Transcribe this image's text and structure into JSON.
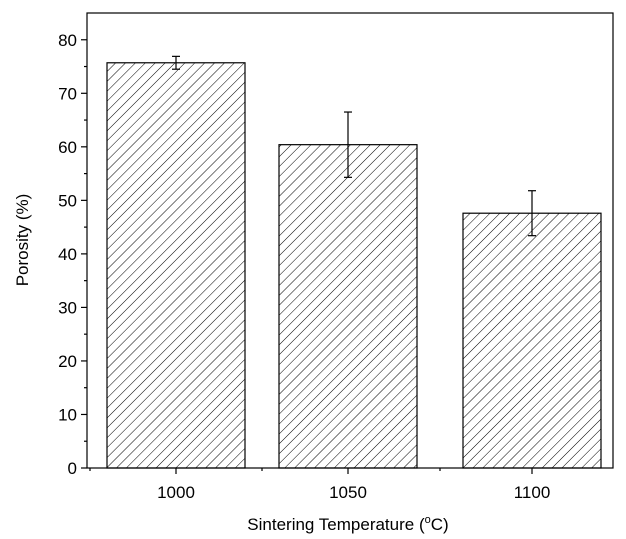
{
  "chart_data": {
    "type": "bar",
    "title": "",
    "categories": [
      "1000",
      "1050",
      "1100"
    ],
    "values": [
      75.7,
      60.4,
      47.6
    ],
    "errors": [
      1.2,
      6.1,
      4.2
    ],
    "xlabel": "Sintering Temperature (",
    "xlabel_degree": "o",
    "xlabel_unit": "C)",
    "ylabel": "Porosity (%)",
    "ylim": [
      0,
      85
    ],
    "yticks": [
      0,
      10,
      20,
      30,
      40,
      50,
      60,
      70,
      80
    ],
    "bar_fill": "hatched",
    "grid": false,
    "legend": "none",
    "colors": {
      "bar_edge": "#000000",
      "hatch": "#000000",
      "background": "#ffffff"
    }
  }
}
